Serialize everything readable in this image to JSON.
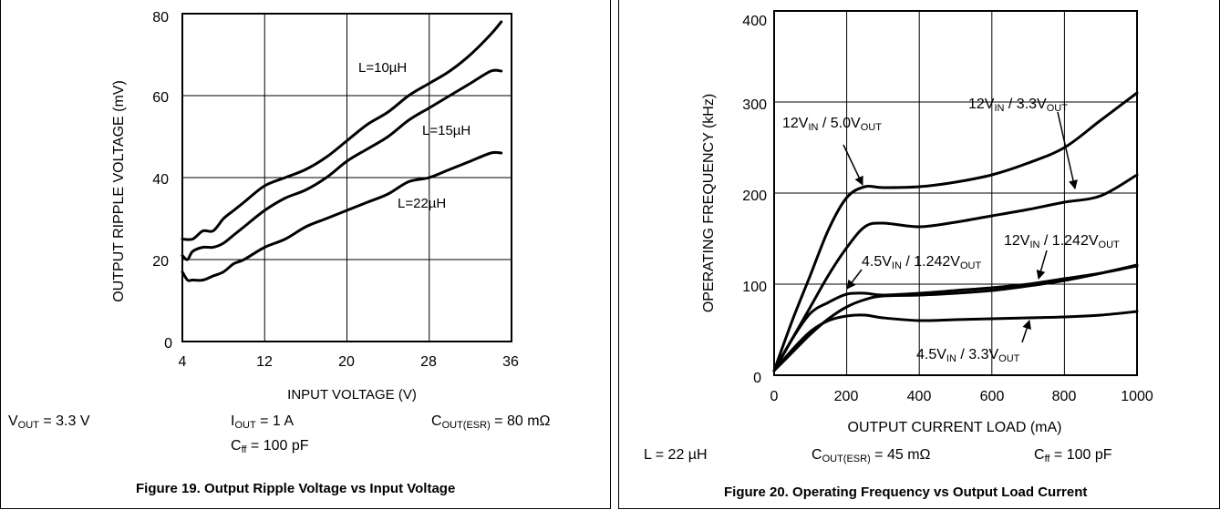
{
  "chart_data": [
    {
      "type": "line",
      "xlabel": "INPUT VOLTAGE (V)",
      "ylabel": "OUTPUT RIPPLE VOLTAGE (mV)",
      "xlim": [
        4,
        36
      ],
      "ylim": [
        0,
        80
      ],
      "xticks": [
        4,
        12,
        20,
        28,
        36
      ],
      "yticks": [
        0,
        20,
        40,
        60,
        80
      ],
      "grid": true,
      "series": [
        {
          "name": "L=10µH",
          "x": [
            4,
            5,
            6,
            7,
            8,
            9,
            10,
            12,
            14,
            16,
            18,
            20,
            22,
            24,
            26,
            28,
            30,
            32,
            34,
            35
          ],
          "y": [
            25,
            25,
            27,
            27,
            30,
            32,
            34,
            38,
            40,
            42,
            45,
            49,
            53,
            56,
            60,
            63,
            66,
            70,
            75,
            78
          ]
        },
        {
          "name": "L=15µH",
          "x": [
            4,
            4.5,
            5,
            6,
            7,
            8,
            9,
            10,
            12,
            14,
            16,
            18,
            20,
            22,
            24,
            26,
            28,
            30,
            32,
            34,
            35
          ],
          "y": [
            21,
            20,
            22,
            23,
            23,
            24,
            26,
            28,
            32,
            35,
            37,
            40,
            44,
            47,
            50,
            54,
            57,
            60,
            63,
            66,
            66
          ]
        },
        {
          "name": "L=22µH",
          "x": [
            4,
            4.5,
            5,
            6,
            7,
            8,
            9,
            10,
            12,
            14,
            16,
            18,
            20,
            22,
            24,
            26,
            28,
            30,
            32,
            34,
            35
          ],
          "y": [
            17,
            15,
            15,
            15,
            16,
            17,
            19,
            20,
            23,
            25,
            28,
            30,
            32,
            34,
            36,
            39,
            40,
            42,
            44,
            46,
            46
          ]
        }
      ],
      "labels": [
        "L=10µH",
        "L=15µH",
        "L=22µH"
      ]
    },
    {
      "type": "line",
      "xlabel": "OUTPUT CURRENT LOAD (mA)",
      "ylabel": "OPERATING FREQUENCY  (kHz)",
      "xlim": [
        0,
        1000
      ],
      "ylim": [
        0,
        400
      ],
      "xticks": [
        0,
        200,
        400,
        600,
        800,
        1000
      ],
      "yticks": [
        0,
        100,
        200,
        300,
        400
      ],
      "grid": true,
      "series": [
        {
          "name": "12VIN / 5.0VOUT",
          "x": [
            0,
            50,
            100,
            150,
            200,
            250,
            300,
            400,
            500,
            600,
            700,
            800,
            900,
            1000
          ],
          "y": [
            5,
            60,
            110,
            160,
            195,
            207,
            206,
            207,
            212,
            220,
            233,
            250,
            280,
            310
          ]
        },
        {
          "name": "12VIN / 3.3VOUT",
          "x": [
            0,
            50,
            100,
            150,
            200,
            250,
            300,
            400,
            500,
            600,
            700,
            800,
            900,
            1000
          ],
          "y": [
            5,
            40,
            75,
            110,
            140,
            163,
            167,
            163,
            168,
            175,
            182,
            190,
            197,
            220
          ]
        },
        {
          "name": "12VIN / 1.242VOUT",
          "x": [
            0,
            50,
            100,
            150,
            200,
            250,
            300,
            400,
            500,
            600,
            700,
            800,
            900,
            1000
          ],
          "y": [
            5,
            25,
            45,
            62,
            75,
            83,
            87,
            88,
            90,
            93,
            98,
            104,
            112,
            121
          ]
        },
        {
          "name": "4.5VIN / 1.242VOUT",
          "x": [
            0,
            50,
            100,
            150,
            200,
            250,
            300,
            400,
            500,
            600,
            700,
            800,
            900,
            1000
          ],
          "y": [
            5,
            40,
            68,
            80,
            89,
            90,
            88,
            90,
            93,
            96,
            100,
            106,
            112,
            120
          ]
        },
        {
          "name": "4.5VIN / 3.3VOUT",
          "x": [
            0,
            50,
            100,
            150,
            200,
            250,
            300,
            400,
            500,
            600,
            700,
            800,
            900,
            1000
          ],
          "y": [
            5,
            28,
            48,
            60,
            65,
            66,
            63,
            60,
            61,
            62,
            63,
            64,
            66,
            70
          ]
        }
      ]
    }
  ],
  "fig19": {
    "ytick_labels": [
      "80",
      "60",
      "40",
      "20",
      "0"
    ],
    "xtick_labels": [
      "4",
      "12",
      "20",
      "28",
      "36"
    ],
    "conditions": {
      "vout": {
        "sym": "V",
        "sub": "OUT",
        "val": " = 3.3 V"
      },
      "iout": {
        "sym": "I",
        "sub": "OUT",
        "val": " = 1 A"
      },
      "cout": {
        "sym": "C",
        "sub": "OUT(ESR)",
        "val": " = 80 mΩ"
      },
      "cff": {
        "sym": "C",
        "sub": "ff",
        "val": " = 100 pF"
      }
    },
    "caption": "Figure 19. Output Ripple Voltage vs Input Voltage"
  },
  "fig20": {
    "ytick_labels": [
      "400",
      "300",
      "200",
      "100",
      "0"
    ],
    "xtick_labels": [
      "0",
      "200",
      "400",
      "600",
      "800",
      "1000"
    ],
    "annot": {
      "a": {
        "v1": "12V",
        "s1": "IN",
        "mid": " / 5.0V",
        "s2": "OUT"
      },
      "b": {
        "v1": "12V",
        "s1": "IN",
        "mid": " / 3.3V",
        "s2": "OUT"
      },
      "c": {
        "v1": "12V",
        "s1": "IN",
        "mid": " / 1.242V",
        "s2": "OUT"
      },
      "d": {
        "v1": "4.5V",
        "s1": "IN",
        "mid": " / 1.242V",
        "s2": "OUT"
      },
      "e": {
        "v1": "4.5V",
        "s1": "IN",
        "mid": " / 3.3V",
        "s2": "OUT"
      }
    },
    "conditions": {
      "l": {
        "val": "L = 22 µH"
      },
      "cout": {
        "sym": "C",
        "sub": "OUT(ESR)",
        "val": " = 45 mΩ"
      },
      "cff": {
        "sym": "C",
        "sub": "ff",
        "val": " = 100 pF"
      }
    },
    "caption": "Figure 20. Operating Frequency vs Output Load Current"
  }
}
